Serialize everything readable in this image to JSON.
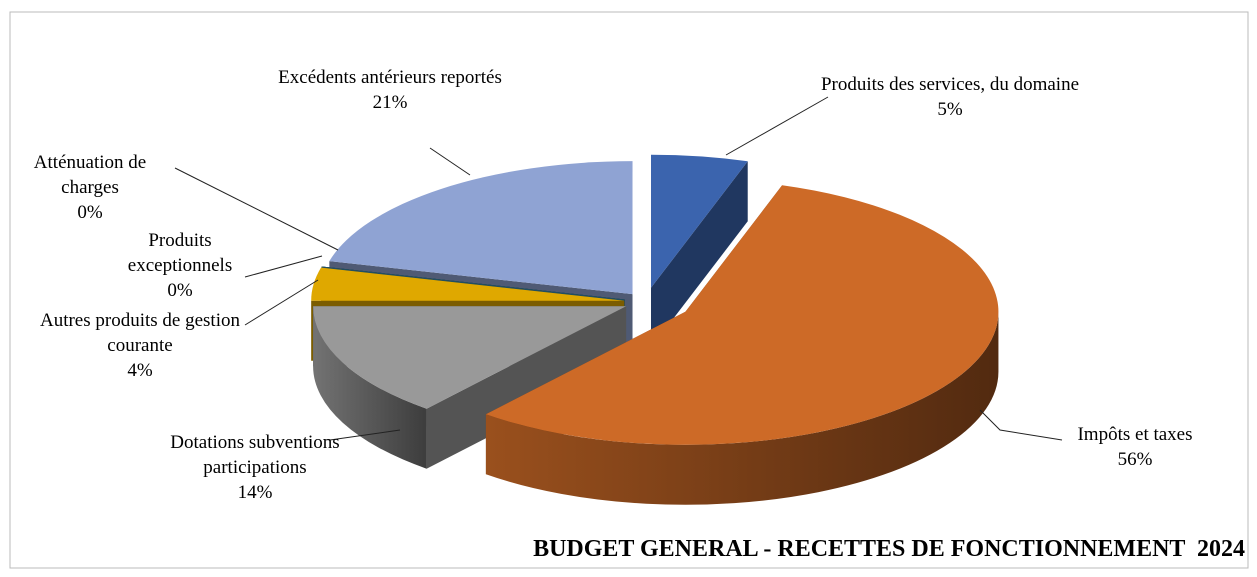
{
  "chart_data": {
    "type": "pie",
    "title": "BUDGET GENERAL - RECETTES DE FONCTIONNEMENT  2024",
    "categories": [
      "Produits des services, du domaine",
      "Impôts et taxes",
      "Dotations subventions participations",
      "Autres produits de gestion courante",
      "Produits exceptionnels",
      "Atténuation de charges",
      "Excédents antérieurs reportés"
    ],
    "values": [
      5,
      56,
      14,
      4,
      0,
      0,
      21
    ],
    "value_labels": [
      "5%",
      "56%",
      "14%",
      "4%",
      "0%",
      "0%",
      "21%"
    ],
    "colors": [
      "#3b64ae",
      "#cd6a27",
      "#999999",
      "#dfa800",
      "#1f5f8c",
      "#3d8fb0",
      "#8fa3d3"
    ]
  }
}
